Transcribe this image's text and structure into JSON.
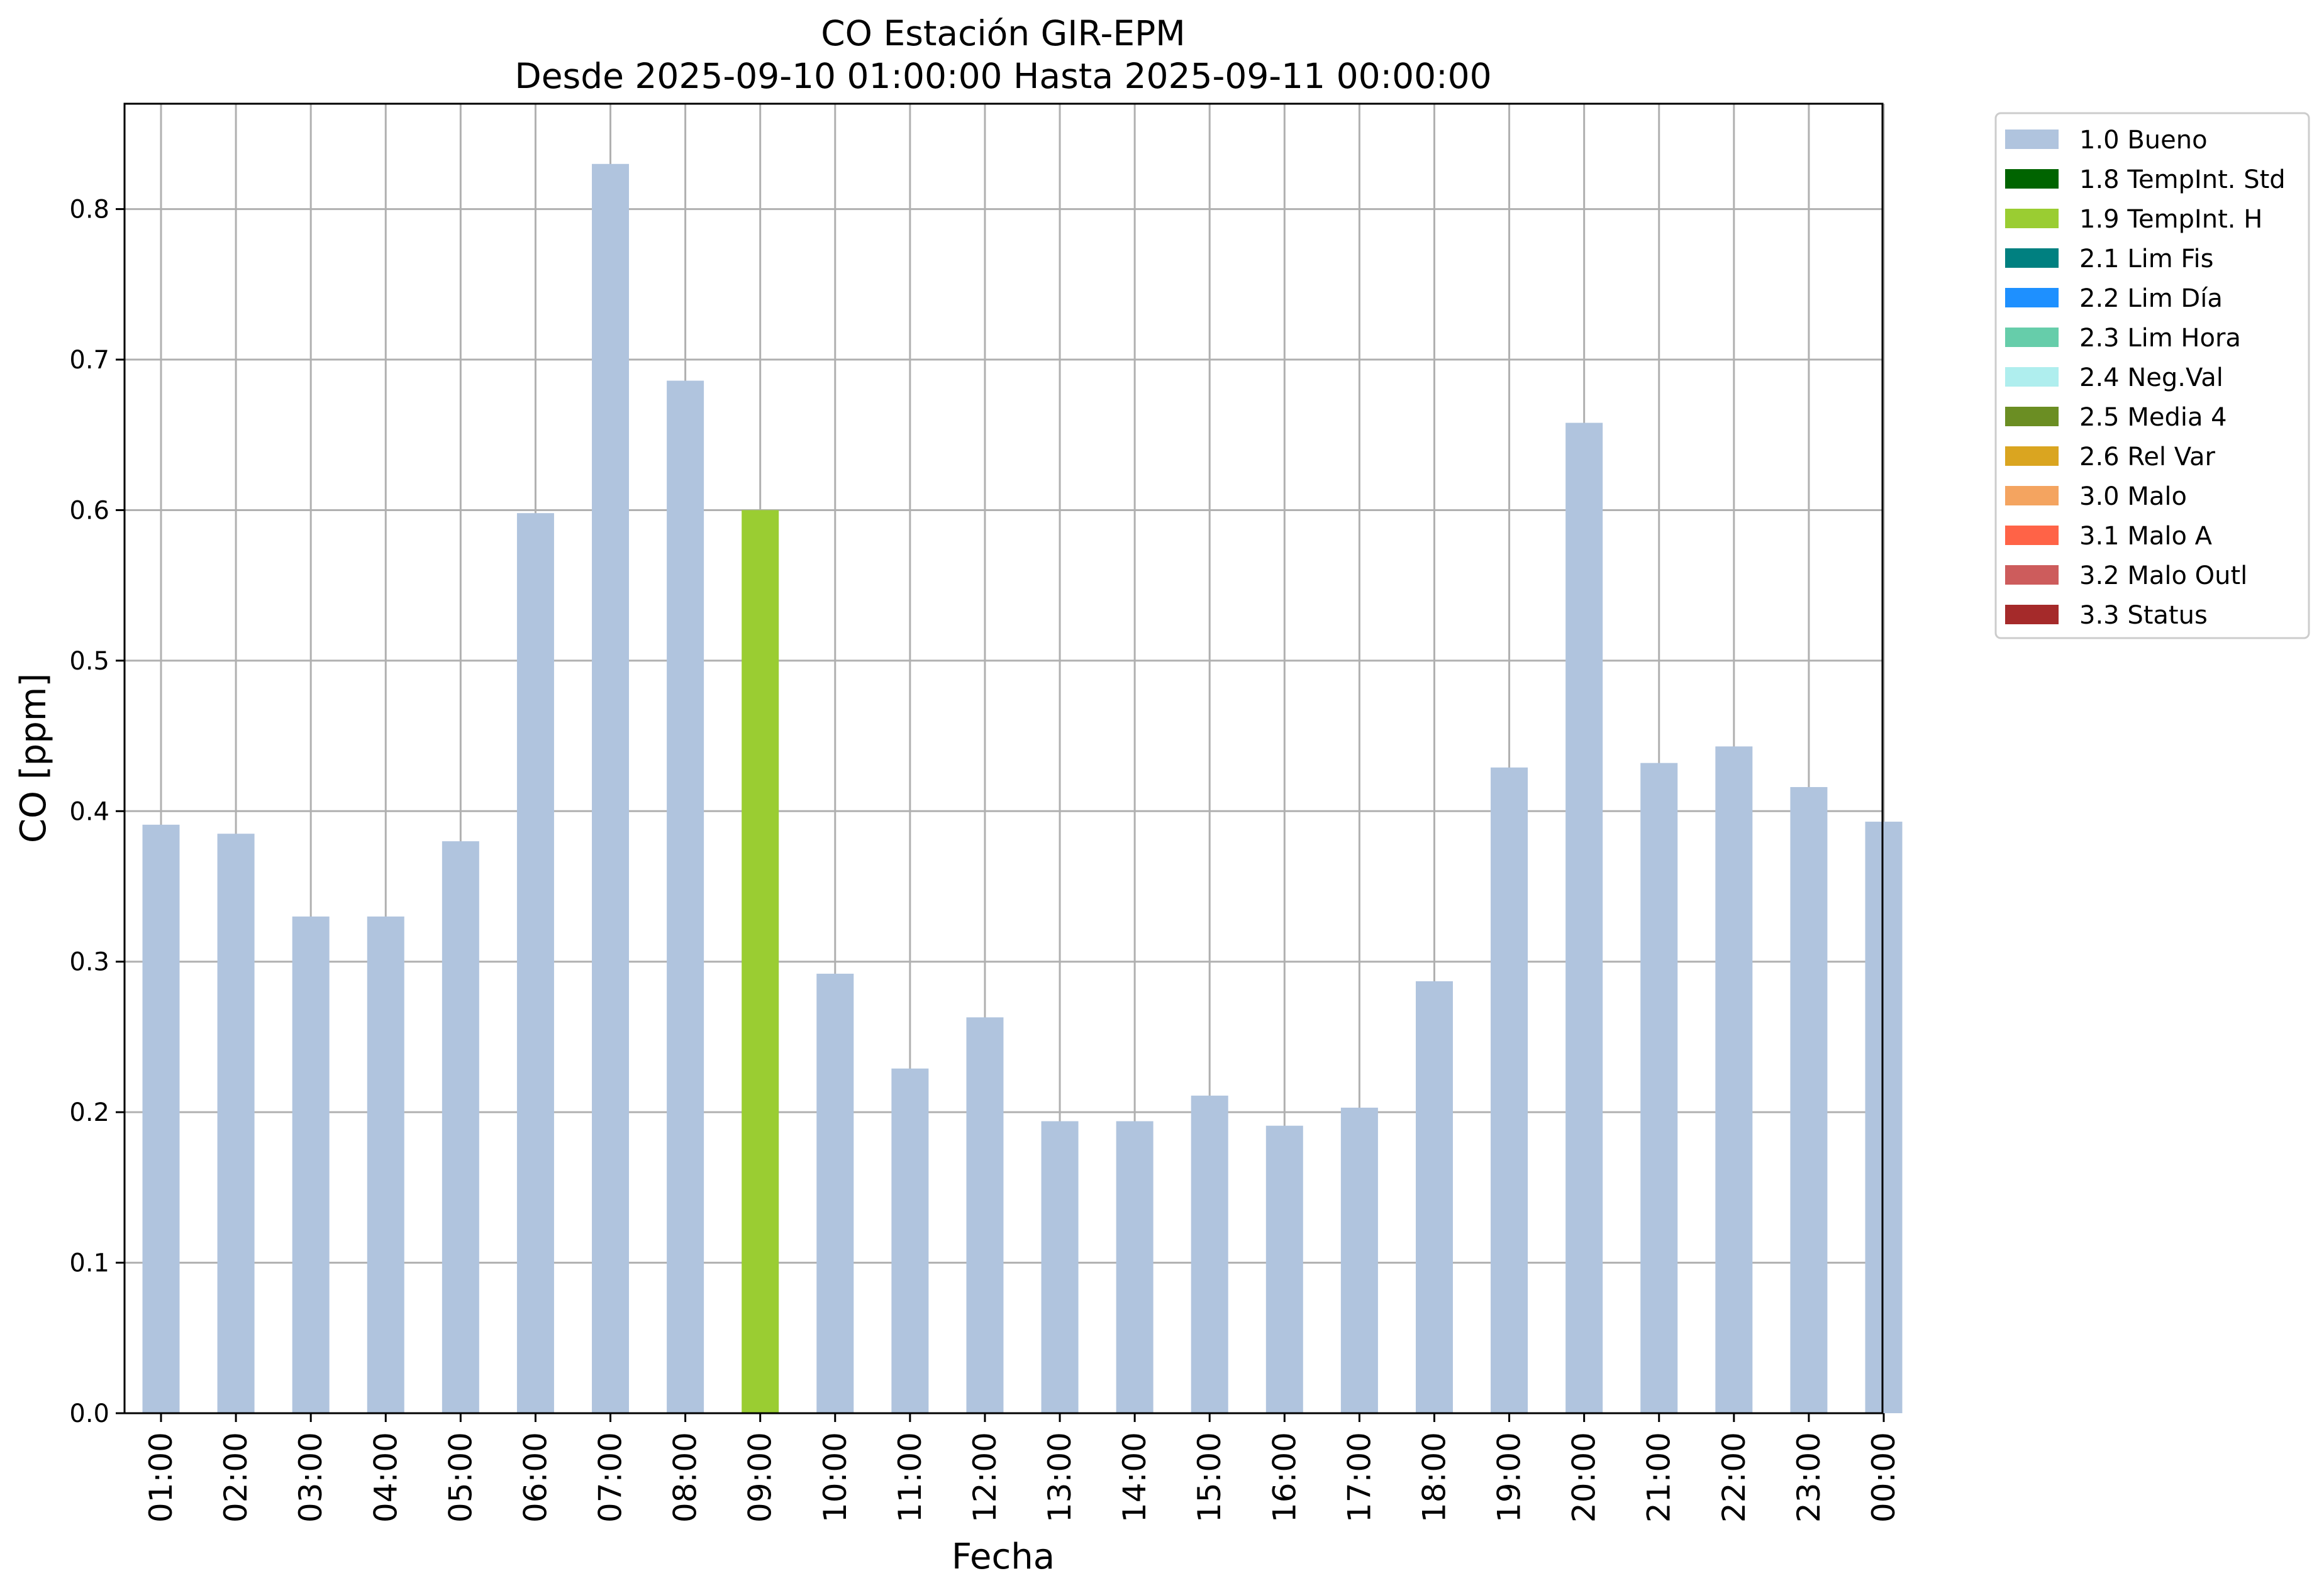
{
  "chart_data": {
    "type": "bar",
    "title": "CO Estación GIR-EPM",
    "subtitle": "Desde 2025-09-10 01:00:00 Hasta 2025-09-11 00:00:00",
    "xlabel": "Fecha",
    "ylabel": "CO [ppm]",
    "ylim": [
      0,
      0.87
    ],
    "yticks": [
      "0.0",
      "0.1",
      "0.2",
      "0.3",
      "0.4",
      "0.5",
      "0.6",
      "0.7",
      "0.8"
    ],
    "grid": true,
    "legend_position": "outside-top-right",
    "categories": [
      "01:00",
      "02:00",
      "03:00",
      "04:00",
      "05:00",
      "06:00",
      "07:00",
      "08:00",
      "09:00",
      "10:00",
      "11:00",
      "12:00",
      "13:00",
      "14:00",
      "15:00",
      "16:00",
      "17:00",
      "18:00",
      "19:00",
      "20:00",
      "21:00",
      "22:00",
      "23:00",
      "00:00"
    ],
    "values": [
      0.391,
      0.385,
      0.33,
      0.33,
      0.38,
      0.598,
      0.83,
      0.686,
      0.6,
      0.292,
      0.229,
      0.263,
      0.194,
      0.194,
      0.211,
      0.191,
      0.203,
      0.287,
      0.429,
      0.658,
      0.432,
      0.443,
      0.416,
      0.393
    ],
    "flags": [
      "1.0 Bueno",
      "1.0 Bueno",
      "1.0 Bueno",
      "1.0 Bueno",
      "1.0 Bueno",
      "1.0 Bueno",
      "1.0 Bueno",
      "1.0 Bueno",
      "1.9 TempInt. H",
      "1.0 Bueno",
      "1.0 Bueno",
      "1.0 Bueno",
      "1.0 Bueno",
      "1.0 Bueno",
      "1.0 Bueno",
      "1.0 Bueno",
      "1.0 Bueno",
      "1.0 Bueno",
      "1.0 Bueno",
      "1.0 Bueno",
      "1.0 Bueno",
      "1.0 Bueno",
      "1.0 Bueno",
      "1.0 Bueno"
    ],
    "legend": [
      {
        "name": "1.0 Bueno",
        "color": "#b0c4de"
      },
      {
        "name": "1.8 TempInt. Std",
        "color": "#006400"
      },
      {
        "name": "1.9 TempInt. H",
        "color": "#9acd32"
      },
      {
        "name": "2.1 Lim Fis",
        "color": "#008080"
      },
      {
        "name": "2.2 Lim Día",
        "color": "#1e90ff"
      },
      {
        "name": "2.3 Lim Hora",
        "color": "#66cdaa"
      },
      {
        "name": "2.4 Neg.Val",
        "color": "#afeeee"
      },
      {
        "name": "2.5 Media 4",
        "color": "#6b8e23"
      },
      {
        "name": "2.6 Rel Var",
        "color": "#daa520"
      },
      {
        "name": "3.0 Malo",
        "color": "#f4a460"
      },
      {
        "name": "3.1 Malo A",
        "color": "#ff6347"
      },
      {
        "name": "3.2 Malo Outl",
        "color": "#cd5c5c"
      },
      {
        "name": "3.3 Status",
        "color": "#a52a2a"
      }
    ]
  }
}
